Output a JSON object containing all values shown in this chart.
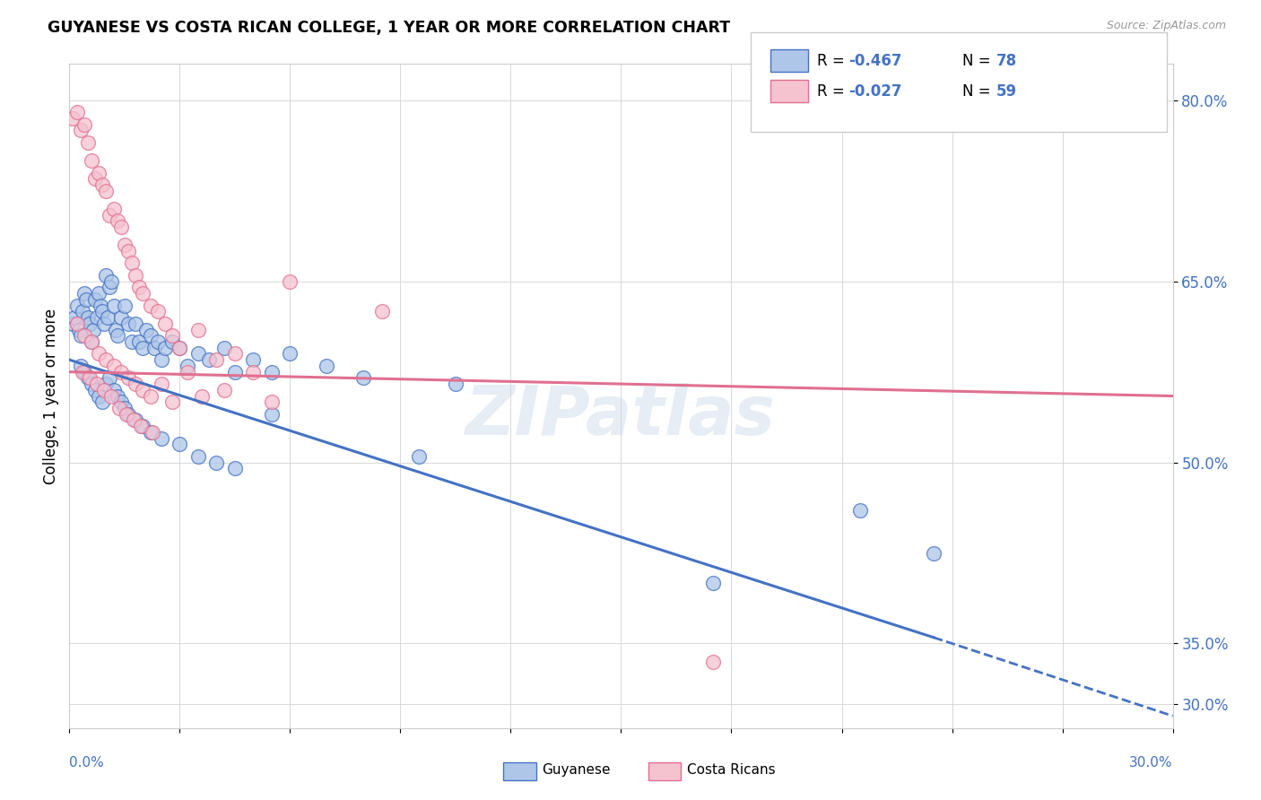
{
  "title": "GUYANESE VS COSTA RICAN COLLEGE, 1 YEAR OR MORE CORRELATION CHART",
  "source": "Source: ZipAtlas.com",
  "ylabel": "College, 1 year or more",
  "xlim": [
    0.0,
    30.0
  ],
  "ylim": [
    28.0,
    83.0
  ],
  "yticks": [
    30.0,
    35.0,
    50.0,
    65.0,
    80.0
  ],
  "xticks": [
    0.0,
    3.0,
    6.0,
    9.0,
    12.0,
    15.0,
    18.0,
    21.0,
    24.0,
    27.0,
    30.0
  ],
  "blue_R": -0.467,
  "blue_N": 78,
  "pink_R": -0.027,
  "pink_N": 59,
  "legend_label_blue": "Guyanese",
  "legend_label_pink": "Costa Ricans",
  "blue_color": "#aec6e8",
  "blue_line_color": "#4472c4",
  "pink_color": "#f5c2d0",
  "pink_line_color": "#e07090",
  "watermark": "ZIPatlas",
  "blue_line_x0": 0.0,
  "blue_line_y0": 58.5,
  "blue_line_x1": 23.5,
  "blue_line_y1": 35.5,
  "blue_dash_x0": 23.5,
  "blue_dash_y0": 35.5,
  "blue_dash_x1": 30.0,
  "blue_dash_y1": 29.0,
  "pink_line_x0": 0.0,
  "pink_line_y0": 57.5,
  "pink_line_x1": 30.0,
  "pink_line_y1": 55.5,
  "blue_scatter_x": [
    0.1,
    0.15,
    0.2,
    0.25,
    0.3,
    0.35,
    0.4,
    0.45,
    0.5,
    0.55,
    0.6,
    0.65,
    0.7,
    0.75,
    0.8,
    0.85,
    0.9,
    0.95,
    1.0,
    1.05,
    1.1,
    1.15,
    1.2,
    1.25,
    1.3,
    1.4,
    1.5,
    1.6,
    1.7,
    1.8,
    1.9,
    2.0,
    2.1,
    2.2,
    2.3,
    2.4,
    2.5,
    2.6,
    2.8,
    3.0,
    3.2,
    3.5,
    3.8,
    4.2,
    4.5,
    5.0,
    5.5,
    6.0,
    7.0,
    8.0,
    0.3,
    0.4,
    0.5,
    0.6,
    0.7,
    0.8,
    0.9,
    1.0,
    1.1,
    1.2,
    1.3,
    1.4,
    1.5,
    1.6,
    1.8,
    2.0,
    2.2,
    2.5,
    3.0,
    3.5,
    4.0,
    4.5,
    5.5,
    9.5,
    10.5,
    17.5,
    21.5,
    23.5
  ],
  "blue_scatter_y": [
    61.5,
    62.0,
    63.0,
    61.0,
    60.5,
    62.5,
    64.0,
    63.5,
    62.0,
    61.5,
    60.0,
    61.0,
    63.5,
    62.0,
    64.0,
    63.0,
    62.5,
    61.5,
    65.5,
    62.0,
    64.5,
    65.0,
    63.0,
    61.0,
    60.5,
    62.0,
    63.0,
    61.5,
    60.0,
    61.5,
    60.0,
    59.5,
    61.0,
    60.5,
    59.5,
    60.0,
    58.5,
    59.5,
    60.0,
    59.5,
    58.0,
    59.0,
    58.5,
    59.5,
    57.5,
    58.5,
    57.5,
    59.0,
    58.0,
    57.0,
    58.0,
    57.5,
    57.0,
    56.5,
    56.0,
    55.5,
    55.0,
    56.5,
    57.0,
    56.0,
    55.5,
    55.0,
    54.5,
    54.0,
    53.5,
    53.0,
    52.5,
    52.0,
    51.5,
    50.5,
    50.0,
    49.5,
    54.0,
    50.5,
    56.5,
    40.0,
    46.0,
    42.5
  ],
  "pink_scatter_x": [
    0.1,
    0.2,
    0.3,
    0.4,
    0.5,
    0.6,
    0.7,
    0.8,
    0.9,
    1.0,
    1.1,
    1.2,
    1.3,
    1.4,
    1.5,
    1.6,
    1.7,
    1.8,
    1.9,
    2.0,
    2.2,
    2.4,
    2.6,
    2.8,
    3.0,
    3.5,
    4.0,
    4.5,
    5.0,
    6.0,
    0.2,
    0.4,
    0.6,
    0.8,
    1.0,
    1.2,
    1.4,
    1.6,
    1.8,
    2.0,
    2.2,
    2.5,
    2.8,
    3.2,
    3.6,
    4.2,
    5.5,
    8.5,
    17.5,
    0.35,
    0.55,
    0.75,
    0.95,
    1.15,
    1.35,
    1.55,
    1.75,
    1.95,
    2.25
  ],
  "pink_scatter_y": [
    78.5,
    79.0,
    77.5,
    78.0,
    76.5,
    75.0,
    73.5,
    74.0,
    73.0,
    72.5,
    70.5,
    71.0,
    70.0,
    69.5,
    68.0,
    67.5,
    66.5,
    65.5,
    64.5,
    64.0,
    63.0,
    62.5,
    61.5,
    60.5,
    59.5,
    61.0,
    58.5,
    59.0,
    57.5,
    65.0,
    61.5,
    60.5,
    60.0,
    59.0,
    58.5,
    58.0,
    57.5,
    57.0,
    56.5,
    56.0,
    55.5,
    56.5,
    55.0,
    57.5,
    55.5,
    56.0,
    55.0,
    62.5,
    33.5,
    57.5,
    57.0,
    56.5,
    56.0,
    55.5,
    54.5,
    54.0,
    53.5,
    53.0,
    52.5
  ]
}
